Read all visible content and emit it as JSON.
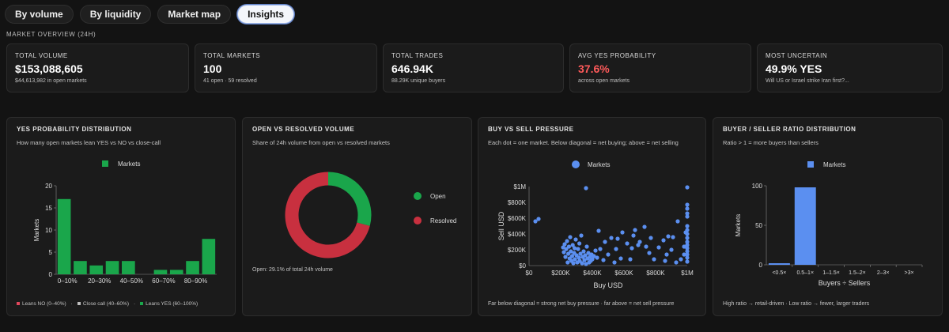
{
  "tabs": [
    {
      "label": "By volume",
      "active": false
    },
    {
      "label": "By liquidity",
      "active": false
    },
    {
      "label": "Market map",
      "active": false
    },
    {
      "label": "Insights",
      "active": true
    }
  ],
  "overview": {
    "title": "MARKET OVERVIEW (24H)",
    "kpis": [
      {
        "label": "TOTAL VOLUME",
        "value": "$153,088,605",
        "sub": "$44,613,982 in open markets"
      },
      {
        "label": "TOTAL MARKETS",
        "value": "100",
        "sub": "41 open · 59 resolved"
      },
      {
        "label": "TOTAL TRADES",
        "value": "646.94K",
        "sub": "88.29K unique buyers"
      },
      {
        "label": "AVG YES PROBABILITY",
        "value": "37.6%",
        "sub": "across open markets",
        "accent": "#ff5a5a"
      },
      {
        "label": "MOST UNCERTAIN",
        "value": "49.9% YES",
        "sub": "Will US or Israel strike Iran first?..."
      }
    ]
  },
  "charts": {
    "yes_dist": {
      "title": "YES PROBABILITY DISTRIBUTION",
      "subtitle": "How many open markets lean YES vs NO vs close-call",
      "legend": "Markets",
      "color": "#1aa64b",
      "footer_items": [
        "Leans NO (0–40%)",
        "Close call (40–60%)",
        "Leans YES (60–100%)"
      ],
      "footer_colors": [
        "#e0475c",
        "#bdbdbd",
        "#1aa64b"
      ]
    },
    "open_resolved": {
      "title": "OPEN VS RESOLVED VOLUME",
      "subtitle": "Share of 24h volume from open vs resolved markets",
      "footer": "Open: 29.1% of total 24h volume"
    },
    "buy_sell": {
      "title": "BUY VS SELL PRESSURE",
      "subtitle": "Each dot = one market. Below diagonal = net buying; above = net selling",
      "legend": "Markets",
      "footer": "Far below diagonal = strong net buy pressure · far above = net sell pressure"
    },
    "ratio_dist": {
      "title": "BUYER / SELLER RATIO DISTRIBUTION",
      "subtitle": "Ratio > 1 = more buyers than sellers",
      "legend": "Markets",
      "footer": "High ratio → retail-driven · Low ratio → fewer, larger traders"
    }
  },
  "chart_data": [
    {
      "type": "bar",
      "categories": [
        "0–10%",
        "10–20%",
        "20–30%",
        "30–40%",
        "40–50%",
        "50–60%",
        "60–70%",
        "70–80%",
        "80–90%",
        "90–100%"
      ],
      "tick_labels": [
        "0–10%",
        "",
        "20–30%",
        "",
        "40–50%",
        "",
        "60–70%",
        "",
        "80–90%",
        ""
      ],
      "values": [
        17,
        3,
        2,
        3,
        3,
        0,
        1,
        1,
        3,
        8
      ],
      "ylabel": "Markets",
      "ylim": [
        0,
        20
      ],
      "yticks": [
        "0",
        "5",
        "10",
        "15",
        "20"
      ],
      "legend": "top-center",
      "series_name": "Markets"
    },
    {
      "type": "pie",
      "donut": true,
      "labels": [
        "Open",
        "Resolved"
      ],
      "values": [
        29.1,
        70.9
      ],
      "colors": [
        "#1aa64b",
        "#c8303f"
      ],
      "legend": "right"
    },
    {
      "type": "scatter",
      "series_name": "Markets",
      "xlabel": "Buy USD",
      "ylabel": "Sell USD",
      "xlim": [
        0,
        1000000
      ],
      "ylim": [
        0,
        1000000
      ],
      "xticks": [
        "$0",
        "$200K",
        "$400K",
        "$600K",
        "$800K",
        "$1M"
      ],
      "yticks": [
        "$0",
        "$200K",
        "$400K",
        "$600K",
        "$800K",
        "$1M"
      ],
      "color": "#5b8ff0",
      "points": [
        [
          40000,
          560000
        ],
        [
          60000,
          590000
        ],
        [
          360000,
          980000
        ],
        [
          1000000,
          990000
        ],
        [
          1000000,
          770000
        ],
        [
          1000000,
          720000
        ],
        [
          1000000,
          660000
        ],
        [
          1000000,
          620000
        ],
        [
          1000000,
          500000
        ],
        [
          1000000,
          450000
        ],
        [
          1000000,
          400000
        ],
        [
          1000000,
          350000
        ],
        [
          1000000,
          300000
        ],
        [
          1000000,
          260000
        ],
        [
          1000000,
          220000
        ],
        [
          1000000,
          180000
        ],
        [
          1000000,
          140000
        ],
        [
          1000000,
          100000
        ],
        [
          1000000,
          50000
        ],
        [
          990000,
          420000
        ],
        [
          980000,
          240000
        ],
        [
          980000,
          140000
        ],
        [
          960000,
          80000
        ],
        [
          940000,
          560000
        ],
        [
          930000,
          40000
        ],
        [
          910000,
          360000
        ],
        [
          900000,
          200000
        ],
        [
          880000,
          370000
        ],
        [
          870000,
          140000
        ],
        [
          860000,
          60000
        ],
        [
          850000,
          320000
        ],
        [
          820000,
          230000
        ],
        [
          790000,
          80000
        ],
        [
          770000,
          350000
        ],
        [
          760000,
          160000
        ],
        [
          740000,
          240000
        ],
        [
          730000,
          490000
        ],
        [
          700000,
          300000
        ],
        [
          690000,
          260000
        ],
        [
          670000,
          450000
        ],
        [
          660000,
          380000
        ],
        [
          650000,
          220000
        ],
        [
          640000,
          80000
        ],
        [
          620000,
          280000
        ],
        [
          590000,
          420000
        ],
        [
          580000,
          90000
        ],
        [
          560000,
          340000
        ],
        [
          550000,
          210000
        ],
        [
          540000,
          40000
        ],
        [
          520000,
          350000
        ],
        [
          500000,
          140000
        ],
        [
          480000,
          300000
        ],
        [
          470000,
          70000
        ],
        [
          450000,
          210000
        ],
        [
          440000,
          440000
        ],
        [
          430000,
          100000
        ],
        [
          420000,
          190000
        ],
        [
          410000,
          120000
        ],
        [
          400000,
          80000
        ],
        [
          395000,
          140000
        ],
        [
          390000,
          60000
        ],
        [
          385000,
          110000
        ],
        [
          380000,
          40000
        ],
        [
          375000,
          160000
        ],
        [
          370000,
          90000
        ],
        [
          365000,
          240000
        ],
        [
          360000,
          20000
        ],
        [
          355000,
          130000
        ],
        [
          350000,
          70000
        ],
        [
          345000,
          180000
        ],
        [
          340000,
          110000
        ],
        [
          335000,
          30000
        ],
        [
          330000,
          380000
        ],
        [
          325000,
          150000
        ],
        [
          320000,
          60000
        ],
        [
          318000,
          280000
        ],
        [
          315000,
          100000
        ],
        [
          310000,
          210000
        ],
        [
          305000,
          40000
        ],
        [
          300000,
          130000
        ],
        [
          295000,
          330000
        ],
        [
          290000,
          80000
        ],
        [
          288000,
          220000
        ],
        [
          285000,
          160000
        ],
        [
          280000,
          30000
        ],
        [
          276000,
          260000
        ],
        [
          272000,
          120000
        ],
        [
          268000,
          60000
        ],
        [
          264000,
          180000
        ],
        [
          260000,
          360000
        ],
        [
          256000,
          90000
        ],
        [
          252000,
          240000
        ],
        [
          248000,
          150000
        ],
        [
          244000,
          40000
        ],
        [
          240000,
          310000
        ],
        [
          235000,
          210000
        ],
        [
          230000,
          110000
        ],
        [
          225000,
          270000
        ],
        [
          220000,
          170000
        ],
        [
          215000,
          230000
        ]
      ]
    },
    {
      "type": "bar",
      "series_name": "Markets",
      "categories": [
        "<0.5×",
        "0.5–1×",
        "1–1.5×",
        "1.5–2×",
        "2–3×",
        ">3×"
      ],
      "values": [
        2,
        98,
        0,
        0,
        0,
        0
      ],
      "xlabel": "Buyers ÷ Sellers",
      "ylabel": "Markets",
      "ylim": [
        0,
        100
      ],
      "yticks": [
        "0",
        "50",
        "100"
      ],
      "color": "#5b8ff0",
      "legend": "top-center"
    }
  ]
}
